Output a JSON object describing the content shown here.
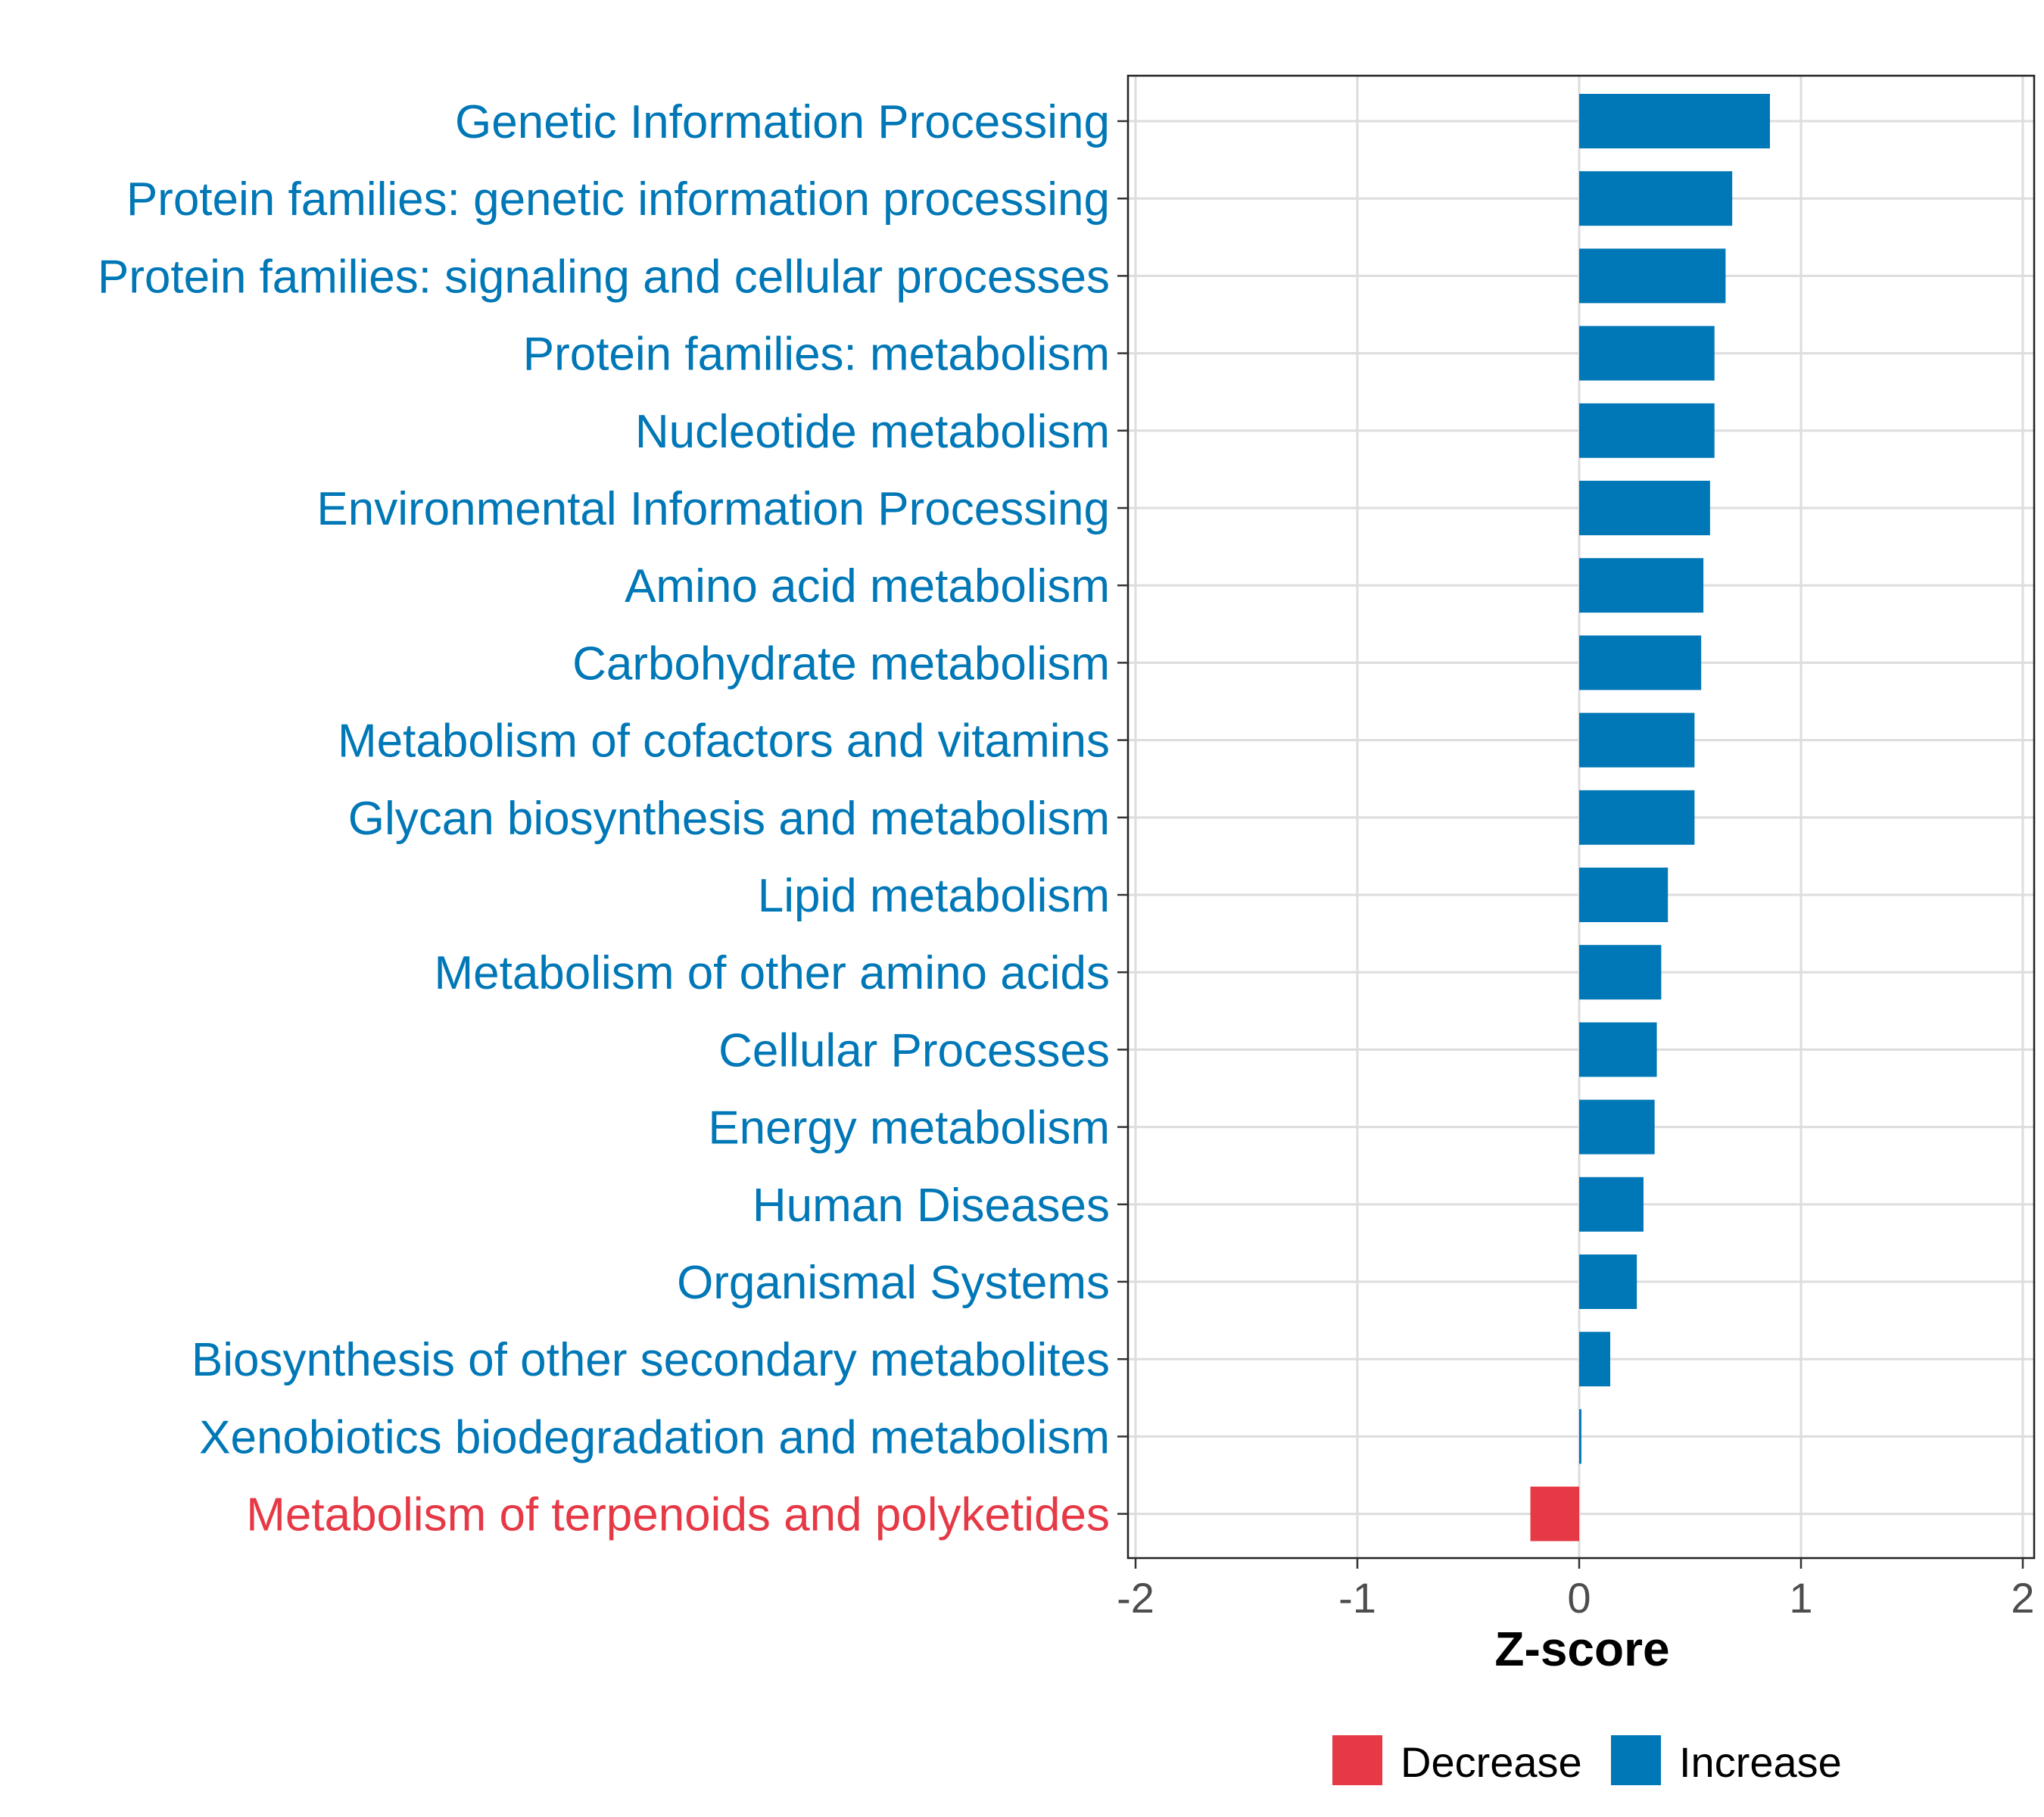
{
  "chart_data": {
    "type": "bar",
    "orientation": "horizontal",
    "title": "",
    "xlabel": "Z-score",
    "ylabel": "",
    "xlim": [
      -2,
      2
    ],
    "xticks": [
      "-2",
      "-1",
      "0",
      "1",
      "2"
    ],
    "grid": true,
    "legend": {
      "placement": "bottom",
      "entries": [
        {
          "name": "Decrease",
          "color": "#E63946"
        },
        {
          "name": "Increase",
          "color": "#0077B6"
        }
      ]
    },
    "colors": {
      "Decrease": "#E63946",
      "Increase": "#0077B6"
    },
    "categories": [
      {
        "label": "Genetic Information Processing",
        "value": 0.86,
        "group": "Increase"
      },
      {
        "label": "Protein families: genetic information processing",
        "value": 0.69,
        "group": "Increase"
      },
      {
        "label": "Protein families: signaling and cellular processes",
        "value": 0.66,
        "group": "Increase"
      },
      {
        "label": "Protein families: metabolism",
        "value": 0.61,
        "group": "Increase"
      },
      {
        "label": "Nucleotide metabolism",
        "value": 0.61,
        "group": "Increase"
      },
      {
        "label": "Environmental Information Processing",
        "value": 0.59,
        "group": "Increase"
      },
      {
        "label": "Amino acid metabolism",
        "value": 0.56,
        "group": "Increase"
      },
      {
        "label": "Carbohydrate metabolism",
        "value": 0.55,
        "group": "Increase"
      },
      {
        "label": "Metabolism of cofactors and vitamins",
        "value": 0.52,
        "group": "Increase"
      },
      {
        "label": "Glycan biosynthesis and metabolism",
        "value": 0.52,
        "group": "Increase"
      },
      {
        "label": "Lipid metabolism",
        "value": 0.4,
        "group": "Increase"
      },
      {
        "label": "Metabolism of other amino acids",
        "value": 0.37,
        "group": "Increase"
      },
      {
        "label": "Cellular Processes",
        "value": 0.35,
        "group": "Increase"
      },
      {
        "label": "Energy metabolism",
        "value": 0.34,
        "group": "Increase"
      },
      {
        "label": "Human Diseases",
        "value": 0.29,
        "group": "Increase"
      },
      {
        "label": "Organismal Systems",
        "value": 0.26,
        "group": "Increase"
      },
      {
        "label": "Biosynthesis of other secondary metabolites",
        "value": 0.14,
        "group": "Increase"
      },
      {
        "label": "Xenobiotics biodegradation and metabolism",
        "value": 0.01,
        "group": "Increase"
      },
      {
        "label": "Metabolism of terpenoids and polyketides",
        "value": -0.22,
        "group": "Decrease"
      }
    ]
  }
}
